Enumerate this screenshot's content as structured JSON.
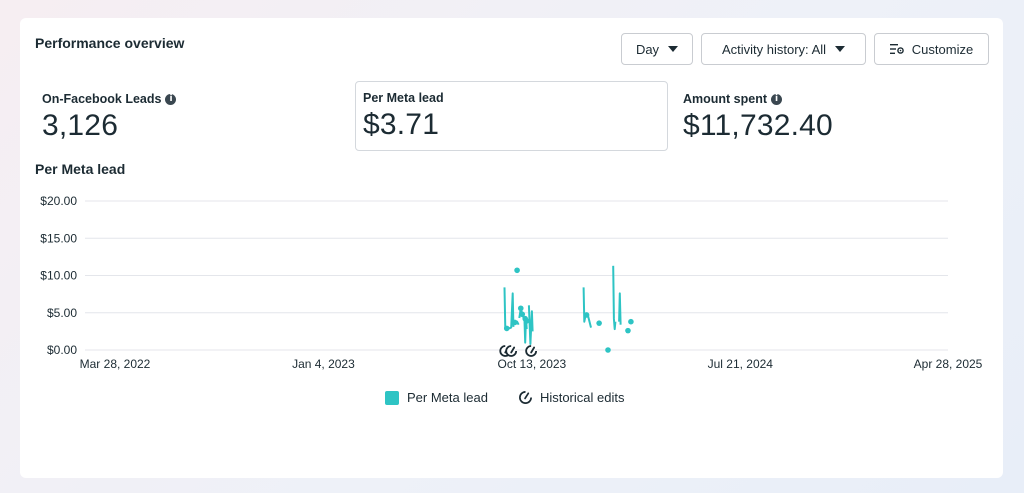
{
  "card": {
    "title": "Performance overview"
  },
  "controls": {
    "day_label": "Day",
    "activity_label": "Activity history: All",
    "customize_label": "Customize"
  },
  "metrics": [
    {
      "label": "On-Facebook Leads",
      "value": "3,126",
      "info": true
    },
    {
      "label": "Per Meta lead",
      "value": "$3.71",
      "info": false,
      "selected": true
    },
    {
      "label": "Amount spent",
      "value": "$11,732.40",
      "info": true
    }
  ],
  "chart_title": "Per Meta lead",
  "legend": {
    "series_label": "Per Meta lead",
    "edits_label": "Historical edits"
  },
  "colors": {
    "series": "#2ec4c4",
    "grid": "#e4e6eb",
    "axis_text": "#1c2b33"
  },
  "chart_data": {
    "type": "line",
    "title": "Per Meta lead",
    "xlabel": "",
    "ylabel": "",
    "ylim": [
      0,
      20
    ],
    "xlim": [
      "2022-03-28",
      "2025-04-28"
    ],
    "y_ticks": [
      "$0.00",
      "$5.00",
      "$10.00",
      "$15.00",
      "$20.00"
    ],
    "x_ticks": [
      {
        "date": "2022-03-28",
        "label": "Mar 28, 2022"
      },
      {
        "date": "2023-01-04",
        "label": "Jan 4, 2023"
      },
      {
        "date": "2023-10-13",
        "label": "Oct 13, 2023"
      },
      {
        "date": "2024-07-21",
        "label": "Jul 21, 2024"
      },
      {
        "date": "2025-04-28",
        "label": "Apr 28, 2025"
      }
    ],
    "grid": true,
    "legend_position": "bottom",
    "series": [
      {
        "name": "Per Meta lead",
        "segments": [
          [
            [
              "2023-09-06",
              8.4
            ],
            [
              "2023-09-07",
              2.8
            ],
            [
              "2023-09-12",
              2.9
            ],
            [
              "2023-09-15",
              3.0
            ],
            [
              "2023-09-17",
              7.6
            ],
            [
              "2023-09-18",
              3.1
            ]
          ],
          [
            [
              "2023-09-20",
              3.6
            ],
            [
              "2023-09-23",
              3.8
            ],
            [
              "2023-09-25",
              3.4
            ]
          ],
          [
            [
              "2023-09-26",
              4.3
            ],
            [
              "2023-09-28",
              5.6
            ],
            [
              "2023-10-01",
              4.4
            ]
          ],
          [
            [
              "2023-10-03",
              4.0
            ],
            [
              "2023-10-04",
              1.0
            ],
            [
              "2023-10-05",
              4.4
            ],
            [
              "2023-10-06",
              2.8
            ]
          ],
          [
            [
              "2023-10-09",
              6.0
            ],
            [
              "2023-10-11",
              0.8
            ],
            [
              "2023-10-13",
              5.2
            ],
            [
              "2023-10-14",
              2.5
            ]
          ],
          [
            [
              "2023-12-22",
              8.4
            ],
            [
              "2023-12-23",
              3.8
            ],
            [
              "2023-12-25",
              4.8
            ],
            [
              "2023-12-28",
              4.6
            ],
            [
              "2024-01-01",
              3.0
            ]
          ],
          [
            [
              "2024-01-31",
              11.3
            ],
            [
              "2024-02-01",
              4.2
            ],
            [
              "2024-02-02",
              2.8
            ],
            [
              "2024-02-03",
              3.8
            ]
          ],
          [
            [
              "2024-02-08",
              3.8
            ],
            [
              "2024-02-09",
              7.6
            ],
            [
              "2024-02-10",
              3.4
            ]
          ]
        ],
        "points": [
          [
            "2023-09-09",
            2.9
          ],
          [
            "2023-09-20",
            3.7
          ],
          [
            "2023-09-28",
            5.6
          ],
          [
            "2023-09-30",
            4.8
          ],
          [
            "2023-09-23",
            10.7
          ],
          [
            "2023-10-04",
            4.2
          ],
          [
            "2023-10-06",
            3.9
          ],
          [
            "2023-12-26",
            4.7
          ],
          [
            "2024-01-12",
            3.6
          ],
          [
            "2024-01-24",
            0.0
          ],
          [
            "2024-02-20",
            2.6
          ],
          [
            "2024-02-24",
            3.8
          ]
        ]
      }
    ],
    "historical_edits": [
      "2023-09-07",
      "2023-09-15",
      "2023-10-12"
    ]
  }
}
